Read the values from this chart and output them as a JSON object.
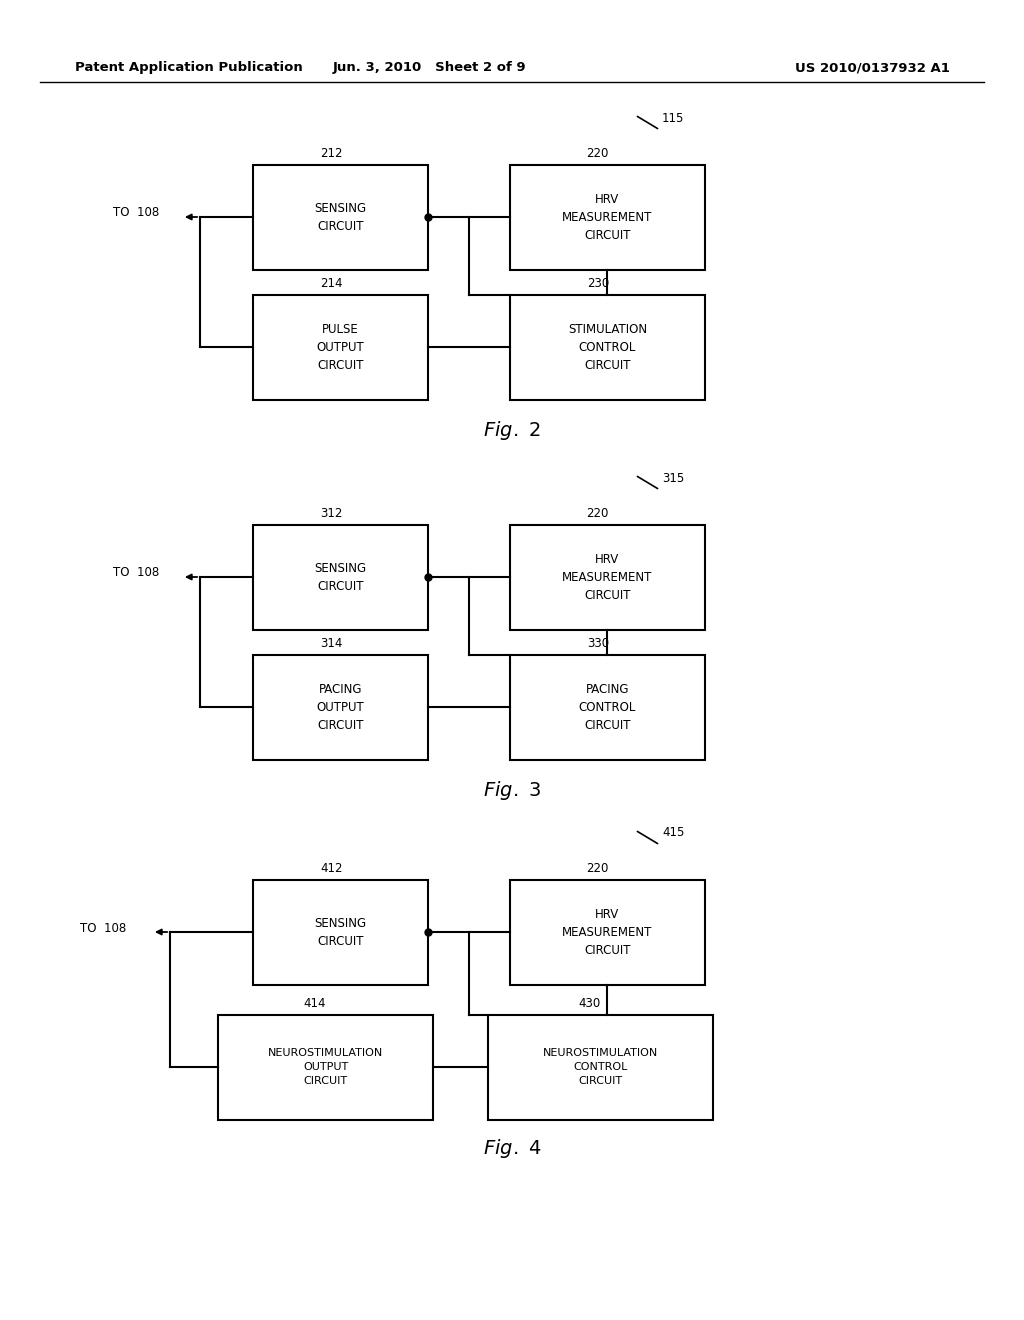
{
  "bg_color": "#ffffff",
  "header_left": "Patent Application Publication",
  "header_mid": "Jun. 3, 2010   Sheet 2 of 9",
  "header_right": "US 2010/0137932 A1",
  "fig2": {
    "ref_label": "115",
    "sensing_ref": "212",
    "hrv_ref": "220",
    "bottom_left_ref": "214",
    "bottom_right_ref": "230",
    "sensing_label": "SENSING\nCIRCUIT",
    "hrv_label": "HRV\nMEASUREMENT\nCIRCUIT",
    "bottom_left_label": "PULSE\nOUTPUT\nCIRCUIT",
    "bottom_right_label": "STIMULATION\nCONTROL\nCIRCUIT",
    "fig_label": "Fig. 2"
  },
  "fig3": {
    "ref_label": "315",
    "sensing_ref": "312",
    "hrv_ref": "220",
    "bottom_left_ref": "314",
    "bottom_right_ref": "330",
    "sensing_label": "SENSING\nCIRCUIT",
    "hrv_label": "HRV\nMEASUREMENT\nCIRCUIT",
    "bottom_left_label": "PACING\nOUTPUT\nCIRCUIT",
    "bottom_right_label": "PACING\nCONTROL\nCIRCUIT",
    "fig_label": "Fig. 3"
  },
  "fig4": {
    "ref_label": "415",
    "sensing_ref": "412",
    "hrv_ref": "220",
    "bottom_left_ref": "414",
    "bottom_right_ref": "430",
    "sensing_label": "SENSING\nCIRCUIT",
    "hrv_label": "HRV\nMEASUREMENT\nCIRCUIT",
    "bottom_left_label": "NEUROSTIMULATION\nOUTPUT\nCIRCUIT",
    "bottom_right_label": "NEUROSTIMULATION\nCONTROL\nCIRCUIT",
    "fig_label": "Fig. 4"
  }
}
